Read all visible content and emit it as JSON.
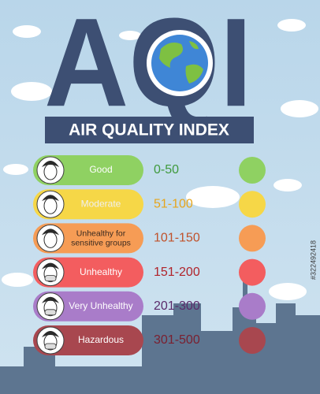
{
  "header": {
    "title": "AQI",
    "subtitle": "AIR QUALITY INDEX"
  },
  "levels": [
    {
      "label": "Good",
      "range": "0-50"
    },
    {
      "label": "Moderate",
      "range": "51-100"
    },
    {
      "label": "Unhealthy for sensitive groups",
      "range": "101-150"
    },
    {
      "label": "Unhealthy",
      "range": "151-200"
    },
    {
      "label": "Very Unhealthy",
      "range": "201-300"
    },
    {
      "label": "Hazardous",
      "range": "301-500"
    }
  ],
  "watermark": "#322492418"
}
